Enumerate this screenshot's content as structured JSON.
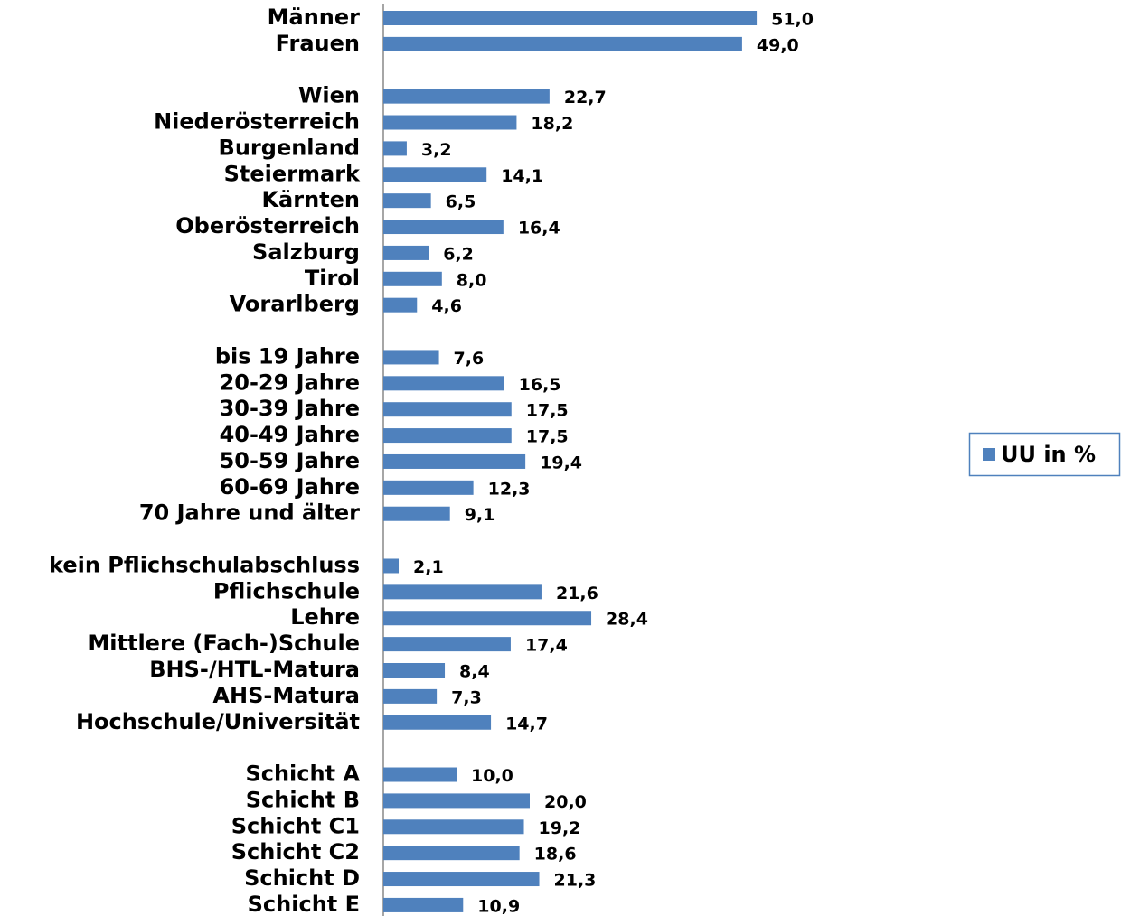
{
  "chart_data": {
    "type": "barh",
    "categories": [
      "Männer",
      "Frauen",
      null,
      "Wien",
      "Niederösterreich",
      "Burgenland",
      "Steiermark",
      "Kärnten",
      "Oberösterreich",
      "Salzburg",
      "Tirol",
      "Vorarlberg",
      null,
      "bis 19 Jahre",
      "20-29 Jahre",
      "30-39 Jahre",
      "40-49 Jahre",
      "50-59 Jahre",
      "60-69 Jahre",
      "70 Jahre und älter",
      null,
      "kein Pflichschulabschluss",
      "Pflichschule",
      "Lehre",
      "Mittlere (Fach-)Schule",
      "BHS-/HTL-Matura",
      "AHS-Matura",
      "Hochschule/Universität",
      null,
      "Schicht A",
      "Schicht B",
      "Schicht C1",
      "Schicht C2",
      "Schicht D",
      "Schicht E"
    ],
    "series": [
      {
        "name": "UU in %",
        "color": "#4f81bd",
        "values": [
          51.0,
          49.0,
          null,
          22.7,
          18.2,
          3.2,
          14.1,
          6.5,
          16.4,
          6.2,
          8.0,
          4.6,
          null,
          7.6,
          16.5,
          17.5,
          17.5,
          19.4,
          12.3,
          9.1,
          null,
          2.1,
          21.6,
          28.4,
          17.4,
          8.4,
          7.3,
          14.7,
          null,
          10.0,
          20.0,
          19.2,
          18.6,
          21.3,
          10.9
        ],
        "value_labels": [
          "51,0",
          "49,0",
          null,
          "22,7",
          "18,2",
          "3,2",
          "14,1",
          "6,5",
          "16,4",
          "6,2",
          "8,0",
          "4,6",
          null,
          "7,6",
          "16,5",
          "17,5",
          "17,5",
          "19,4",
          "12,3",
          "9,1",
          null,
          "2,1",
          "21,6",
          "28,4",
          "17,4",
          "8,4",
          "7,3",
          "14,7",
          null,
          "10,0",
          "20,0",
          "19,2",
          "18,6",
          "21,3",
          "10,9"
        ]
      }
    ],
    "xlim": [
      0,
      60
    ],
    "legend": "right"
  }
}
